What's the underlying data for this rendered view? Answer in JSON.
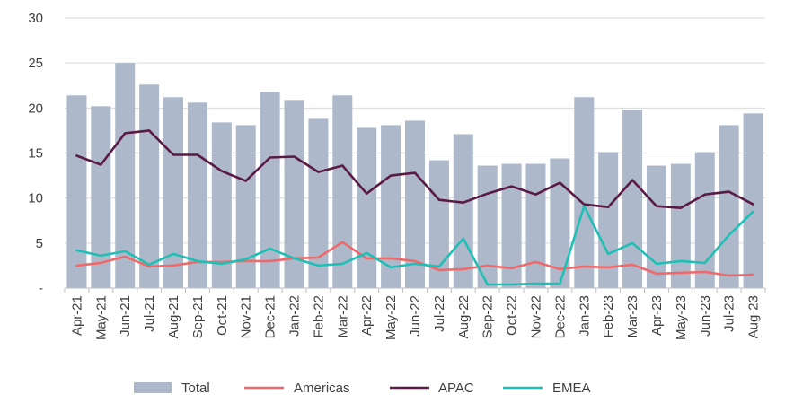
{
  "chart_data": {
    "type": "bar+line",
    "title": "",
    "xlabel": "",
    "ylabel": "",
    "ylim": [
      0,
      30
    ],
    "yticks": [
      0,
      5,
      10,
      15,
      20,
      25,
      30
    ],
    "ytick_labels": [
      "-",
      "5",
      "10",
      "15",
      "20",
      "25",
      "30"
    ],
    "grid": "horizontal",
    "legend_position": "bottom",
    "categories": [
      "Apr-21",
      "May-21",
      "Jun-21",
      "Jul-21",
      "Aug-21",
      "Sep-21",
      "Oct-21",
      "Nov-21",
      "Dec-21",
      "Jan-22",
      "Feb-22",
      "Mar-22",
      "Apr-22",
      "May-22",
      "Jun-22",
      "Jul-22",
      "Aug-22",
      "Sep-22",
      "Oct-22",
      "Nov-22",
      "Dec-22",
      "Jan-23",
      "Feb-23",
      "Mar-23",
      "Apr-23",
      "May-23",
      "Jun-23",
      "Jul-23",
      "Aug-23"
    ],
    "series": [
      {
        "name": "Total",
        "kind": "bar",
        "color": "#adb9ca",
        "values": [
          21.4,
          20.2,
          25.0,
          22.6,
          21.2,
          20.6,
          18.4,
          18.1,
          21.8,
          20.9,
          18.8,
          21.4,
          17.8,
          18.1,
          18.6,
          14.2,
          17.1,
          13.6,
          13.8,
          13.8,
          14.4,
          21.2,
          15.1,
          19.8,
          13.6,
          13.8,
          15.1,
          18.1,
          19.4
        ]
      },
      {
        "name": "Americas",
        "kind": "line",
        "color": "#f0696a",
        "values": [
          2.5,
          2.8,
          3.5,
          2.4,
          2.5,
          2.9,
          2.9,
          3.0,
          3.0,
          3.3,
          3.4,
          5.1,
          3.3,
          3.3,
          3.0,
          2.0,
          2.1,
          2.5,
          2.2,
          2.9,
          2.1,
          2.4,
          2.3,
          2.6,
          1.6,
          1.7,
          1.8,
          1.4,
          1.5
        ]
      },
      {
        "name": "APAC",
        "kind": "line",
        "color": "#5a1a45",
        "values": [
          14.7,
          13.7,
          17.2,
          17.5,
          14.8,
          14.8,
          13.0,
          11.9,
          14.5,
          14.6,
          12.9,
          13.6,
          10.5,
          12.5,
          12.8,
          9.8,
          9.5,
          10.5,
          11.3,
          10.4,
          11.7,
          9.3,
          9.0,
          12.0,
          9.1,
          8.9,
          10.4,
          10.7,
          9.3
        ]
      },
      {
        "name": "EMEA",
        "kind": "line",
        "color": "#1fbfb5",
        "values": [
          4.2,
          3.6,
          4.1,
          2.6,
          3.8,
          3.0,
          2.7,
          3.2,
          4.4,
          3.3,
          2.5,
          2.7,
          3.9,
          2.3,
          2.7,
          2.4,
          5.5,
          0.4,
          0.4,
          0.5,
          0.5,
          9.1,
          3.8,
          5.0,
          2.7,
          3.0,
          2.8,
          5.9,
          8.5
        ]
      }
    ]
  }
}
